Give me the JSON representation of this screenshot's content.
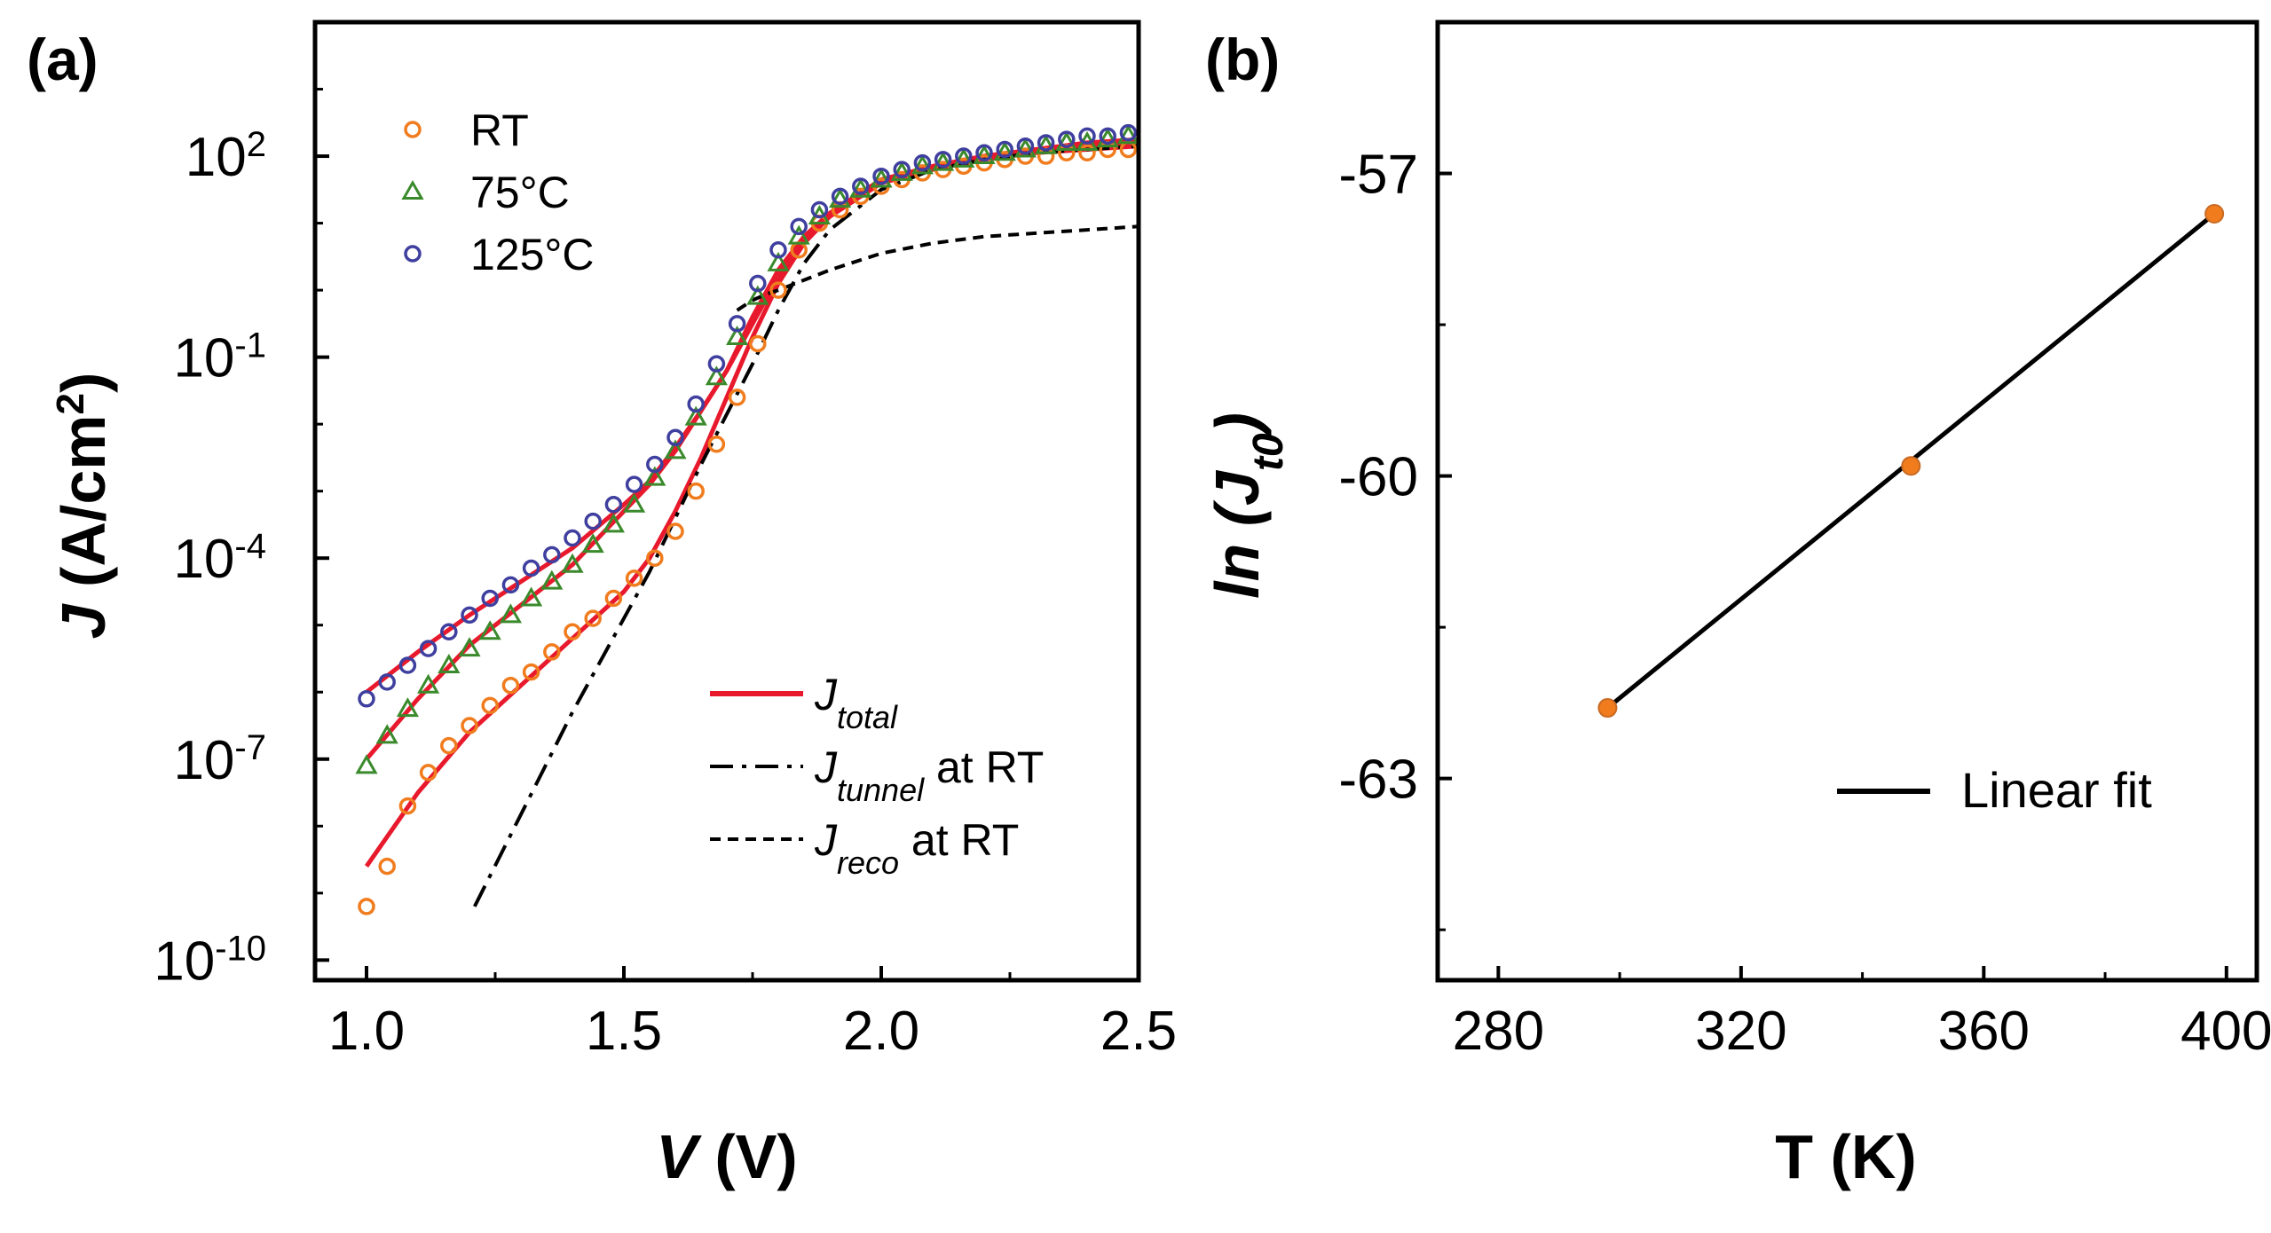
{
  "panels": {
    "a": {
      "label": "(a)"
    },
    "b": {
      "label": "(b)"
    }
  },
  "chart_data": [
    {
      "id": "a",
      "type": "scatter",
      "xlabel_italic": "V",
      "xlabel_rest": " (V)",
      "ylabel_italic": "J",
      "ylabel_rest": " (A/cm",
      "ylabel_sup": "2",
      "ylabel_end": ")",
      "xlim": [
        0.9,
        2.5
      ],
      "ylim_log10": [
        -10.3,
        4.0
      ],
      "y_scale": "log",
      "xticks": [
        {
          "value": 1.0,
          "label": "1.0"
        },
        {
          "value": 1.5,
          "label": "1.5"
        },
        {
          "value": 2.0,
          "label": "2.0"
        },
        {
          "value": 2.5,
          "label": "2.5"
        }
      ],
      "yticks": [
        {
          "exp": -10,
          "base": "10",
          "sup": "-10"
        },
        {
          "exp": -7,
          "base": "10",
          "sup": "-7"
        },
        {
          "exp": -4,
          "base": "10",
          "sup": "-4"
        },
        {
          "exp": -1,
          "base": "10",
          "sup": "-1"
        },
        {
          "exp": 2,
          "base": "10",
          "sup": "2"
        }
      ],
      "series": [
        {
          "name": "RT",
          "marker": "circle",
          "color": "#f07c1e",
          "x": [
            1.0,
            1.04,
            1.08,
            1.12,
            1.16,
            1.2,
            1.24,
            1.28,
            1.32,
            1.36,
            1.4,
            1.44,
            1.48,
            1.52,
            1.56,
            1.6,
            1.64,
            1.68,
            1.72,
            1.76,
            1.8,
            1.84,
            1.88,
            1.92,
            1.96,
            2.0,
            2.04,
            2.08,
            2.12,
            2.16,
            2.2,
            2.24,
            2.28,
            2.32,
            2.36,
            2.4,
            2.44,
            2.48
          ],
          "log10_y": [
            -9.2,
            -8.6,
            -7.7,
            -7.2,
            -6.8,
            -6.5,
            -6.2,
            -5.9,
            -5.7,
            -5.4,
            -5.1,
            -4.9,
            -4.6,
            -4.3,
            -4.0,
            -3.6,
            -3.0,
            -2.3,
            -1.6,
            -0.8,
            0.0,
            0.6,
            1.0,
            1.2,
            1.4,
            1.55,
            1.65,
            1.75,
            1.8,
            1.85,
            1.9,
            1.95,
            2.0,
            2.0,
            2.05,
            2.05,
            2.1,
            2.1
          ]
        },
        {
          "name": "75°C",
          "marker": "triangle",
          "color": "#3a8a2c",
          "x": [
            1.0,
            1.04,
            1.08,
            1.12,
            1.16,
            1.2,
            1.24,
            1.28,
            1.32,
            1.36,
            1.4,
            1.44,
            1.48,
            1.52,
            1.56,
            1.6,
            1.64,
            1.68,
            1.72,
            1.76,
            1.8,
            1.84,
            1.88,
            1.92,
            1.96,
            2.0,
            2.04,
            2.08,
            2.12,
            2.16,
            2.2,
            2.24,
            2.28,
            2.32,
            2.36,
            2.4,
            2.44,
            2.48
          ],
          "log10_y": [
            -7.1,
            -6.65,
            -6.25,
            -5.9,
            -5.6,
            -5.35,
            -5.1,
            -4.85,
            -4.6,
            -4.35,
            -4.1,
            -3.8,
            -3.5,
            -3.2,
            -2.8,
            -2.4,
            -1.9,
            -1.3,
            -0.7,
            -0.1,
            0.4,
            0.8,
            1.1,
            1.35,
            1.5,
            1.65,
            1.75,
            1.85,
            1.9,
            1.95,
            2.0,
            2.05,
            2.1,
            2.15,
            2.2,
            2.2,
            2.25,
            2.3
          ]
        },
        {
          "name": "125°C",
          "marker": "circle",
          "color": "#3f3f9f",
          "x": [
            1.0,
            1.04,
            1.08,
            1.12,
            1.16,
            1.2,
            1.24,
            1.28,
            1.32,
            1.36,
            1.4,
            1.44,
            1.48,
            1.52,
            1.56,
            1.6,
            1.64,
            1.68,
            1.72,
            1.76,
            1.8,
            1.84,
            1.88,
            1.92,
            1.96,
            2.0,
            2.04,
            2.08,
            2.12,
            2.16,
            2.2,
            2.24,
            2.28,
            2.32,
            2.36,
            2.4,
            2.44,
            2.48
          ],
          "log10_y": [
            -6.1,
            -5.85,
            -5.6,
            -5.35,
            -5.1,
            -4.85,
            -4.6,
            -4.4,
            -4.15,
            -3.95,
            -3.7,
            -3.45,
            -3.2,
            -2.9,
            -2.6,
            -2.2,
            -1.7,
            -1.1,
            -0.5,
            0.1,
            0.6,
            0.95,
            1.2,
            1.4,
            1.55,
            1.7,
            1.8,
            1.9,
            1.95,
            2.0,
            2.05,
            2.1,
            2.15,
            2.2,
            2.25,
            2.3,
            2.3,
            2.35
          ]
        }
      ],
      "fit_lines": [
        {
          "name": "J_total",
          "style": "solid",
          "color": "#e8192c",
          "curves": [
            {
              "x": [
                1.0,
                1.1,
                1.2,
                1.3,
                1.4,
                1.5,
                1.55,
                1.6,
                1.65,
                1.7,
                1.75,
                1.8,
                1.85,
                1.9,
                2.0,
                2.1,
                2.2,
                2.3,
                2.4,
                2.5
              ],
              "log10_y": [
                -8.6,
                -7.5,
                -6.6,
                -5.9,
                -5.2,
                -4.5,
                -4.0,
                -3.3,
                -2.5,
                -1.6,
                -0.7,
                0.1,
                0.7,
                1.1,
                1.6,
                1.8,
                1.95,
                2.05,
                2.1,
                2.15
              ]
            },
            {
              "x": [
                1.0,
                1.1,
                1.2,
                1.3,
                1.4,
                1.5,
                1.55,
                1.6,
                1.65,
                1.7,
                1.75,
                1.8,
                1.85,
                1.9,
                2.0,
                2.1,
                2.2,
                2.3,
                2.4,
                2.5
              ],
              "log10_y": [
                -7.0,
                -6.1,
                -5.3,
                -4.7,
                -4.1,
                -3.3,
                -2.9,
                -2.4,
                -1.8,
                -1.2,
                -0.4,
                0.3,
                0.8,
                1.15,
                1.65,
                1.85,
                2.0,
                2.1,
                2.15,
                2.2
              ]
            },
            {
              "x": [
                1.0,
                1.1,
                1.2,
                1.3,
                1.4,
                1.5,
                1.55,
                1.6,
                1.65,
                1.7,
                1.75,
                1.8,
                1.85,
                1.9,
                2.0,
                2.1,
                2.2,
                2.3,
                2.4,
                2.5
              ],
              "log10_y": [
                -6.0,
                -5.4,
                -4.85,
                -4.35,
                -3.85,
                -3.2,
                -2.85,
                -2.35,
                -1.8,
                -1.2,
                -0.5,
                0.2,
                0.75,
                1.1,
                1.6,
                1.85,
                2.0,
                2.1,
                2.2,
                2.25
              ]
            }
          ]
        },
        {
          "name": "J_tunnel at RT",
          "style": "dashdot",
          "color": "#000000",
          "curves": [
            {
              "x": [
                1.21,
                1.4,
                1.55,
                1.65,
                1.75,
                1.8,
                1.85,
                1.9,
                2.0,
                2.1,
                2.2,
                2.3,
                2.4,
                2.5
              ],
              "log10_y": [
                -9.2,
                -6.3,
                -4.2,
                -2.6,
                -1.1,
                -0.3,
                0.4,
                0.9,
                1.5,
                1.8,
                1.95,
                2.05,
                2.1,
                2.15
              ]
            }
          ]
        },
        {
          "name": "J_reco at RT",
          "style": "dashed",
          "color": "#000000",
          "curves": [
            {
              "x": [
                1.72,
                1.75,
                1.78,
                1.8,
                1.85,
                1.9,
                2.0,
                2.1,
                2.2,
                2.3,
                2.4,
                2.5
              ],
              "log10_y": [
                -0.3,
                -0.15,
                -0.05,
                0.0,
                0.15,
                0.3,
                0.55,
                0.7,
                0.8,
                0.85,
                0.9,
                0.95
              ]
            }
          ]
        }
      ],
      "legend": {
        "markers": [
          {
            "label": "RT",
            "marker": "circle",
            "color": "#f07c1e"
          },
          {
            "label": "75°C",
            "marker": "triangle",
            "color": "#3a8a2c"
          },
          {
            "label": "125°C",
            "marker": "circle",
            "color": "#3f3f9f"
          }
        ],
        "lines": [
          {
            "main": "J",
            "sub": "total",
            "suffix": "",
            "style": "solid",
            "color": "#e8192c"
          },
          {
            "main": "J",
            "sub": "tunnel",
            "suffix": "  at RT",
            "style": "dashdot",
            "color": "#000000"
          },
          {
            "main": "J",
            "sub": "reco",
            "suffix": "  at RT",
            "style": "dashed",
            "color": "#000000"
          }
        ]
      }
    },
    {
      "id": "b",
      "type": "scatter",
      "xlabel": "T (K)",
      "ylabel_prefix": "ln (J",
      "ylabel_sub": "t0",
      "ylabel_suffix": ")",
      "xlim": [
        270,
        405
      ],
      "ylim": [
        -65.0,
        -55.5
      ],
      "xticks": [
        {
          "value": 280,
          "label": "280"
        },
        {
          "value": 320,
          "label": "320"
        },
        {
          "value": 360,
          "label": "360"
        },
        {
          "value": 400,
          "label": "400"
        }
      ],
      "yticks": [
        {
          "value": -57,
          "label": "-57"
        },
        {
          "value": -60,
          "label": "-60"
        },
        {
          "value": -63,
          "label": "-63"
        }
      ],
      "points": {
        "x": [
          298,
          348,
          398
        ],
        "y": [
          -62.3,
          -59.9,
          -57.4
        ],
        "color": "#f07c1e"
      },
      "fit": {
        "name": "Linear fit",
        "x": [
          298,
          398
        ],
        "y": [
          -62.3,
          -57.4
        ],
        "color": "#000000"
      },
      "legend": {
        "label": "Linear fit"
      }
    }
  ]
}
